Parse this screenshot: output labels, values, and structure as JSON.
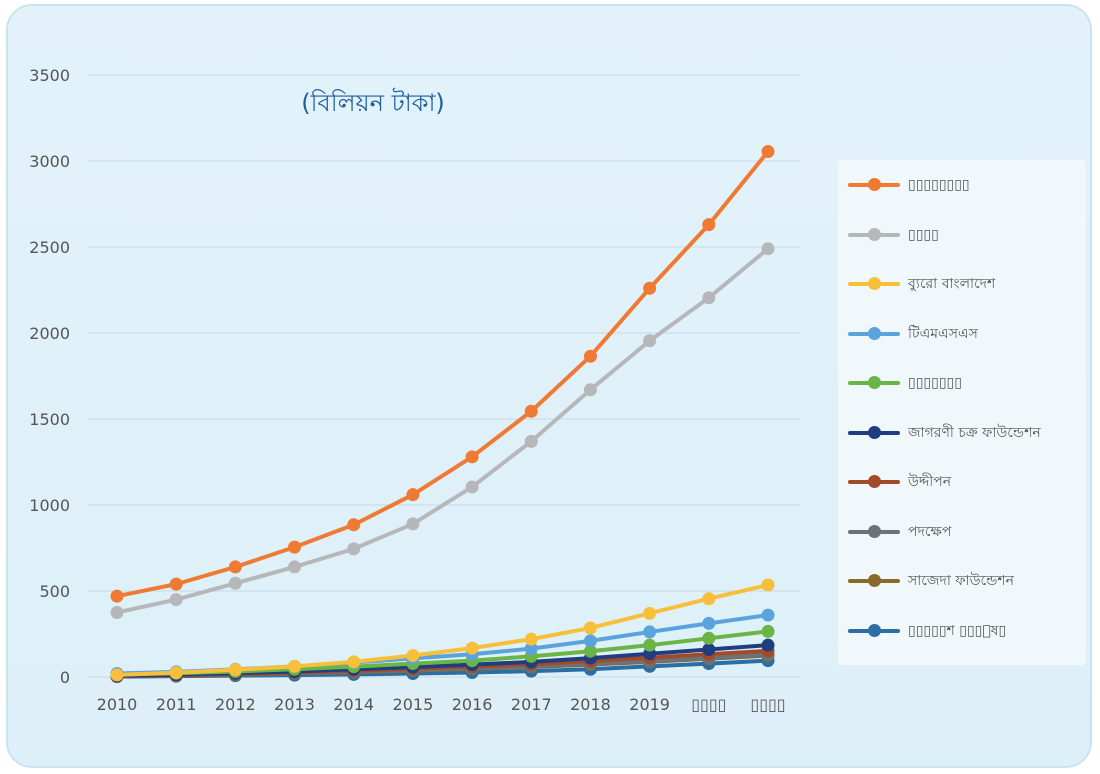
{
  "chart_data": {
    "type": "line",
    "title": "(বিলিয়ন টাকা)",
    "xlabel": "",
    "ylabel": "",
    "categories": [
      "2010",
      "2011",
      "2012",
      "2013",
      "2014",
      "2015",
      "2016",
      "2017",
      "2018",
      "2019",
      "▯▯▯▯",
      "▯▯▯▯"
    ],
    "ylim": [
      0,
      3500
    ],
    "yticks": [
      0,
      500,
      1000,
      1500,
      2000,
      2500,
      3000,
      3500
    ],
    "grid": true,
    "legend_position": "right",
    "series": [
      {
        "name": "▯▯▯▯▯▯▯▯",
        "color": "#ef7a33",
        "values": [
          470,
          540,
          640,
          755,
          885,
          1060,
          1280,
          1545,
          1865,
          2260,
          2630,
          3055
        ]
      },
      {
        "name": "▯▯▯▯",
        "color": "#b5b7ba",
        "values": [
          375,
          450,
          545,
          640,
          745,
          890,
          1105,
          1370,
          1670,
          1955,
          2205,
          2490
        ]
      },
      {
        "name": "ব্যুরো বাংলাদেশ",
        "color": "#f8c03a",
        "values": [
          12,
          25,
          42,
          62,
          88,
          125,
          168,
          220,
          285,
          370,
          455,
          535
        ]
      },
      {
        "name": "টিএমএসএস",
        "color": "#5aa3dd",
        "values": [
          20,
          30,
          44,
          62,
          84,
          108,
          132,
          165,
          210,
          262,
          312,
          360
        ]
      },
      {
        "name": "▯▯▯▯▯▯▯",
        "color": "#6ab545",
        "values": [
          15,
          22,
          32,
          45,
          60,
          78,
          95,
          120,
          150,
          185,
          225,
          265
        ]
      },
      {
        "name": "জাগরণী চক্র ফাউন্ডেশন",
        "color": "#1e3e80",
        "values": [
          8,
          14,
          22,
          32,
          45,
          58,
          72,
          88,
          110,
          135,
          160,
          185
        ]
      },
      {
        "name": "উদ্দীপন",
        "color": "#a34a2a",
        "values": [
          5,
          10,
          17,
          26,
          36,
          48,
          60,
          75,
          92,
          112,
          132,
          152
        ]
      },
      {
        "name": "পদক্ষেপ",
        "color": "#6b7278",
        "values": [
          5,
          9,
          15,
          22,
          30,
          40,
          50,
          62,
          76,
          92,
          110,
          130
        ]
      },
      {
        "name": "সাজেদা ফাউন্ডেশন",
        "color": "#8a6a2a",
        "values": [
          4,
          8,
          13,
          20,
          28,
          37,
          47,
          58,
          72,
          88,
          106,
          124
        ]
      },
      {
        "name": "▯▯▯▯▯শ ▯▯▯ুষ▯",
        "color": "#2a6ea5",
        "values": [
          2,
          5,
          8,
          11,
          15,
          20,
          26,
          34,
          45,
          62,
          78,
          95
        ]
      }
    ]
  }
}
